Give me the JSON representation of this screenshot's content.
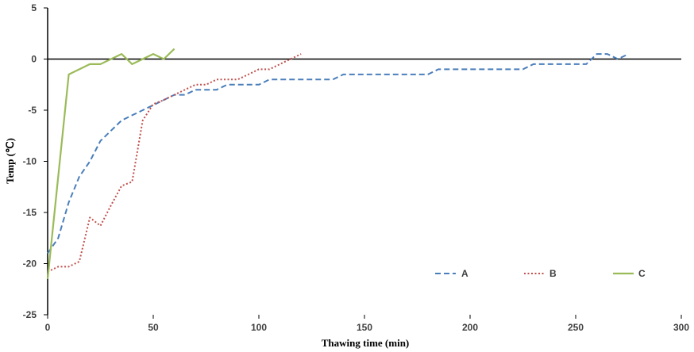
{
  "chart_data": {
    "type": "line",
    "xlabel": "Thawing time (min)",
    "ylabel": "Temp (℃)",
    "xlim": [
      0,
      300
    ],
    "ylim": [
      -25,
      5
    ],
    "x_ticks": [
      "0",
      "50",
      "100",
      "150",
      "200",
      "250",
      "300"
    ],
    "y_ticks": [
      "5",
      "0",
      "-5",
      "-10",
      "-15",
      "-20",
      "-25"
    ],
    "grid": false,
    "legend_position": "bottom-right",
    "series": [
      {
        "name": "A",
        "color": "#4a7ebb",
        "style": "dashed",
        "x": [
          0,
          5,
          10,
          15,
          20,
          25,
          30,
          35,
          40,
          45,
          50,
          55,
          60,
          65,
          70,
          75,
          80,
          85,
          90,
          95,
          100,
          105,
          110,
          115,
          120,
          125,
          130,
          135,
          140,
          145,
          150,
          155,
          160,
          165,
          170,
          175,
          180,
          185,
          190,
          195,
          200,
          205,
          210,
          215,
          220,
          225,
          230,
          235,
          240,
          245,
          250,
          255,
          260,
          265,
          270,
          275
        ],
        "y": [
          -19,
          -17.5,
          -14,
          -11.5,
          -10,
          -8,
          -7,
          -6,
          -5.5,
          -5,
          -4.5,
          -4,
          -3.5,
          -3.5,
          -3,
          -3,
          -3,
          -2.5,
          -2.5,
          -2.5,
          -2.5,
          -2,
          -2,
          -2,
          -2,
          -2,
          -2,
          -2,
          -1.5,
          -1.5,
          -1.5,
          -1.5,
          -1.5,
          -1.5,
          -1.5,
          -1.5,
          -1.5,
          -1,
          -1,
          -1,
          -1,
          -1,
          -1,
          -1,
          -1,
          -1,
          -0.5,
          -0.5,
          -0.5,
          -0.5,
          -0.5,
          -0.5,
          0.5,
          0.5,
          0,
          0.5
        ]
      },
      {
        "name": "B",
        "color": "#c0504d",
        "style": "dotted",
        "x": [
          0,
          5,
          10,
          15,
          20,
          25,
          30,
          35,
          40,
          45,
          50,
          55,
          60,
          65,
          70,
          75,
          80,
          85,
          90,
          95,
          100,
          105,
          110,
          115,
          120
        ],
        "y": [
          -20.8,
          -20.3,
          -20.3,
          -19.8,
          -15.5,
          -16.3,
          -14.3,
          -12.4,
          -12,
          -6,
          -4.4,
          -4,
          -3.5,
          -3,
          -2.5,
          -2.5,
          -2,
          -2,
          -2,
          -1.5,
          -1,
          -1,
          -0.5,
          0,
          0.5
        ]
      },
      {
        "name": "C",
        "color": "#9bbb59",
        "style": "solid",
        "x": [
          0,
          10,
          20,
          25,
          30,
          35,
          40,
          45,
          50,
          55,
          60
        ],
        "y": [
          -21.5,
          -1.5,
          -0.5,
          -0.5,
          0,
          0.5,
          -0.5,
          0,
          0.5,
          0,
          1
        ]
      }
    ]
  }
}
